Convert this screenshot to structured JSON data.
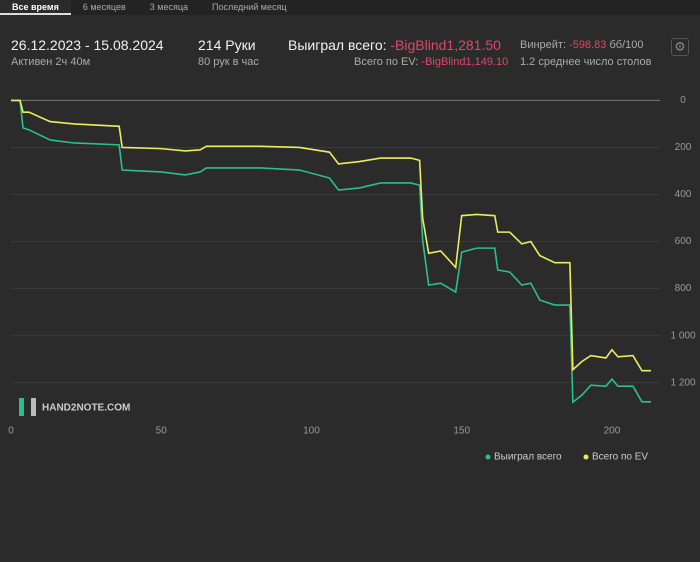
{
  "tabs": [
    "Все время",
    "6 месяцев",
    "3 месяца",
    "Последний месяц"
  ],
  "stats": {
    "period": "26.12.2023 - 15.08.2024",
    "active": "Активен 2ч 40м",
    "hands": "214 Руки",
    "hands_per_hour": "80 рук в час",
    "won_label": "Выиграл всего:",
    "won_value": "-BigBlind1,281.50",
    "ev_label": "Всего по EV:",
    "ev_value": "-BigBlind1,149.10",
    "winrate_label": "Винрейт:",
    "winrate_value": "-598.83",
    "winrate_unit": "бб/100",
    "tables": "1.2 среднее число столов"
  },
  "watermark": "HAND2NOTE.COM",
  "chart_data": {
    "type": "line",
    "x": [
      0,
      3,
      4,
      6,
      13,
      21,
      36,
      37,
      50,
      58,
      63,
      65,
      83,
      96,
      106,
      109,
      116,
      123,
      133,
      136,
      137,
      139,
      143,
      148,
      150,
      155,
      161,
      162,
      166,
      170,
      173,
      176,
      181,
      186,
      187,
      190,
      193,
      198,
      200,
      202,
      207,
      210,
      213
    ],
    "series": [
      {
        "name": "Выиграл всего",
        "color": "#2bbf8e",
        "values": [
          0,
          0,
          117,
          125,
          168,
          181,
          189,
          296,
          304,
          317,
          304,
          287,
          287,
          296,
          330,
          381,
          372,
          351,
          351,
          360,
          594,
          785,
          777,
          815,
          645,
          628,
          628,
          721,
          730,
          785,
          777,
          849,
          870,
          870,
          1283,
          1253,
          1211,
          1215,
          1185,
          1215,
          1215,
          1281.5,
          1281.5
        ]
      },
      {
        "name": "Всего по EV",
        "color": "#ecec5c",
        "values": [
          0,
          0,
          50,
          50,
          90,
          100,
          110,
          200,
          205,
          215,
          210,
          195,
          195,
          200,
          220,
          270,
          260,
          245,
          245,
          255,
          500,
          650,
          640,
          710,
          490,
          485,
          490,
          560,
          560,
          610,
          600,
          660,
          690,
          690,
          1145,
          1110,
          1085,
          1095,
          1060,
          1090,
          1085,
          1149,
          1149
        ]
      }
    ],
    "xlim": [
      0,
      216
    ],
    "xticks": [
      0,
      50,
      100,
      150,
      200
    ],
    "ylim": [
      -40,
      1380
    ],
    "y_reversed": true,
    "yticks": [
      0,
      200,
      400,
      600,
      800,
      {
        "value": 1000,
        "label": "1 000"
      },
      {
        "value": 1200,
        "label": "1 200"
      }
    ],
    "grid": true
  }
}
